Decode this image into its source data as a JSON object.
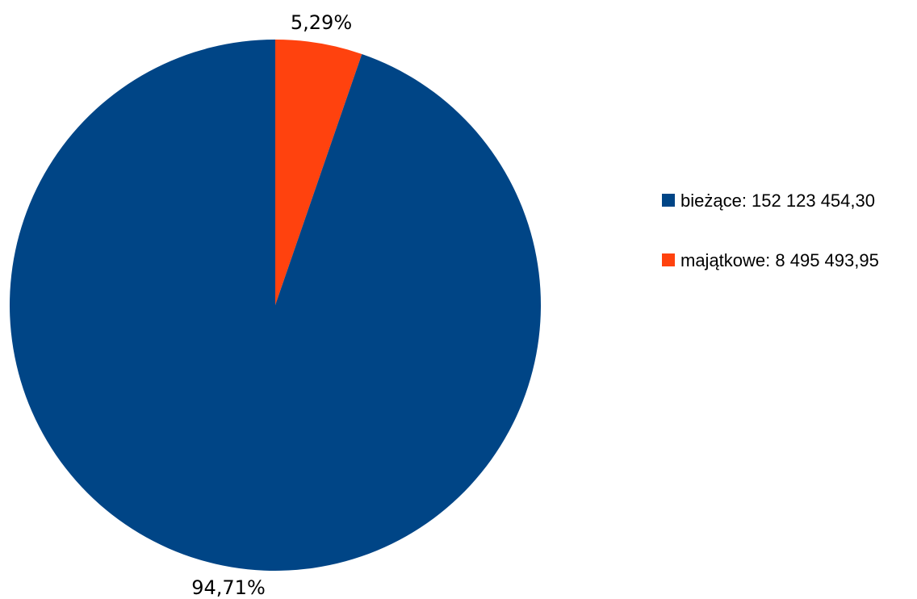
{
  "chart_data": {
    "type": "pie",
    "slices": [
      {
        "label": "bieżące",
        "value": 152123454.3,
        "percent_label": "94,71%",
        "legend_label": "bieżące: 152 123 454,30",
        "color": "#004586"
      },
      {
        "label": "majątkowe",
        "value": 8495493.95,
        "percent_label": "5,29%",
        "legend_label": "majątkowe: 8 495 493,95",
        "color": "#ff420e"
      }
    ],
    "start_angle": "12 o'clock",
    "direction": "counterclockwise for first slice (majątkowe shown clockwise from top)",
    "legend_position": "right"
  }
}
